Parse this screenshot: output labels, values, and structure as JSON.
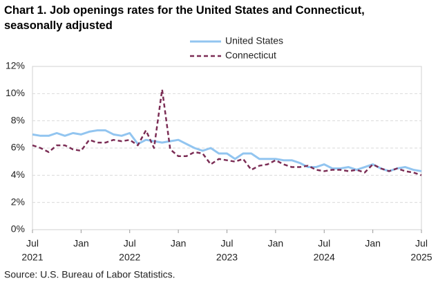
{
  "chart_data": {
    "type": "line",
    "title": "Chart 1. Job openings rates for the United States and Connecticut, seasonally adjusted",
    "source": "Source: U.S. Bureau of Labor Statistics.",
    "categories": [
      "Jul",
      null,
      null,
      null,
      null,
      null,
      "Jan",
      null,
      null,
      null,
      null,
      null,
      "Jul",
      null,
      null,
      null,
      null,
      null,
      "Jan",
      null,
      null,
      null,
      null,
      null,
      "Jul",
      null,
      null,
      null,
      null,
      null,
      "Jan",
      null,
      null,
      null,
      null,
      null,
      "Jul",
      null,
      null,
      null,
      null,
      null,
      "Jan",
      null,
      null,
      null,
      null,
      null,
      "Jul"
    ],
    "years": [
      "2021",
      null,
      null,
      null,
      null,
      null,
      null,
      null,
      null,
      null,
      null,
      null,
      "2022",
      null,
      null,
      null,
      null,
      null,
      null,
      null,
      null,
      null,
      null,
      null,
      "2023",
      null,
      null,
      null,
      null,
      null,
      null,
      null,
      null,
      null,
      null,
      null,
      "2024",
      null,
      null,
      null,
      null,
      null,
      null,
      null,
      null,
      null,
      null,
      null,
      "2025"
    ],
    "series": [
      {
        "name": "United States",
        "color": "#92c5f0",
        "dash": false,
        "values": [
          7.0,
          6.9,
          6.9,
          7.1,
          6.9,
          7.1,
          7.0,
          7.2,
          7.3,
          7.3,
          7.0,
          6.9,
          7.1,
          6.3,
          6.6,
          6.5,
          6.4,
          6.5,
          6.6,
          6.3,
          6.0,
          5.8,
          6.0,
          5.6,
          5.6,
          5.2,
          5.6,
          5.6,
          5.2,
          5.2,
          5.2,
          5.1,
          5.1,
          4.9,
          4.6,
          4.6,
          4.8,
          4.5,
          4.5,
          4.6,
          4.4,
          4.6,
          4.8,
          4.5,
          4.3,
          4.5,
          4.6,
          4.4,
          4.3
        ]
      },
      {
        "name": "Connecticut",
        "color": "#7b2d55",
        "dash": true,
        "values": [
          6.2,
          6.0,
          5.7,
          6.2,
          6.2,
          5.9,
          5.8,
          6.6,
          6.4,
          6.4,
          6.6,
          6.5,
          6.6,
          6.2,
          7.3,
          6.0,
          10.3,
          5.9,
          5.4,
          5.4,
          5.7,
          5.6,
          4.8,
          5.2,
          5.1,
          5.0,
          5.2,
          4.4,
          4.7,
          4.8,
          5.1,
          4.8,
          4.6,
          4.6,
          4.7,
          4.4,
          4.3,
          4.4,
          4.4,
          4.3,
          4.4,
          4.2,
          4.8,
          4.5,
          4.3,
          4.5,
          4.3,
          4.2,
          4.0
        ]
      }
    ],
    "ylim": [
      0,
      12
    ],
    "yticks": [
      {
        "value": 0,
        "label": "0%"
      },
      {
        "value": 2,
        "label": "2%"
      },
      {
        "value": 4,
        "label": "4%"
      },
      {
        "value": 6,
        "label": "6%"
      },
      {
        "value": 8,
        "label": "8%"
      },
      {
        "value": 10,
        "label": "10%"
      },
      {
        "value": 12,
        "label": "12%"
      }
    ],
    "grid": true
  }
}
